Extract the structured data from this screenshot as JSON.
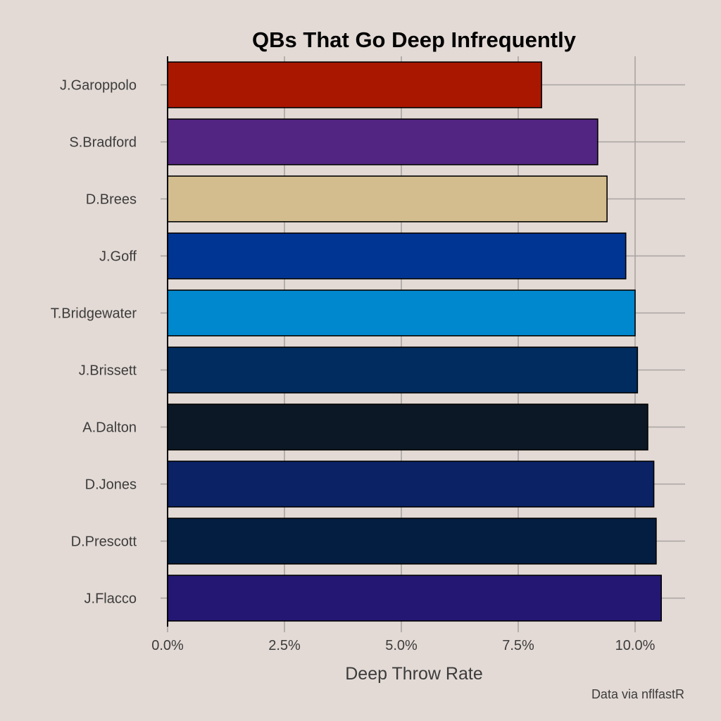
{
  "chart_data": {
    "type": "bar",
    "orientation": "horizontal",
    "title": "QBs That Go Deep Infrequently",
    "xlabel": "Deep Throw Rate",
    "ylabel": "",
    "caption": "Data via nflfastR",
    "xlim": [
      0,
      11.0
    ],
    "x_ticks": [
      0,
      2.5,
      5.0,
      7.5,
      10.0
    ],
    "x_tick_labels": [
      "0.0%",
      "2.5%",
      "5.0%",
      "7.5%",
      "10.0%"
    ],
    "categories": [
      "J.Garoppolo",
      "S.Bradford",
      "D.Brees",
      "J.Goff",
      "T.Bridgewater",
      "J.Brissett",
      "A.Dalton",
      "D.Jones",
      "D.Prescott",
      "J.Flacco"
    ],
    "values": [
      8.0,
      9.2,
      9.4,
      9.8,
      10.0,
      10.05,
      10.27,
      10.4,
      10.45,
      10.56
    ],
    "bar_colors": [
      "#aa1700",
      "#532582",
      "#d3bd8e",
      "#003594",
      "#0088ce",
      "#002c5f",
      "#0c1825",
      "#0b2265",
      "#041e42",
      "#241773"
    ],
    "grid": true,
    "background": "#e3dad5"
  }
}
